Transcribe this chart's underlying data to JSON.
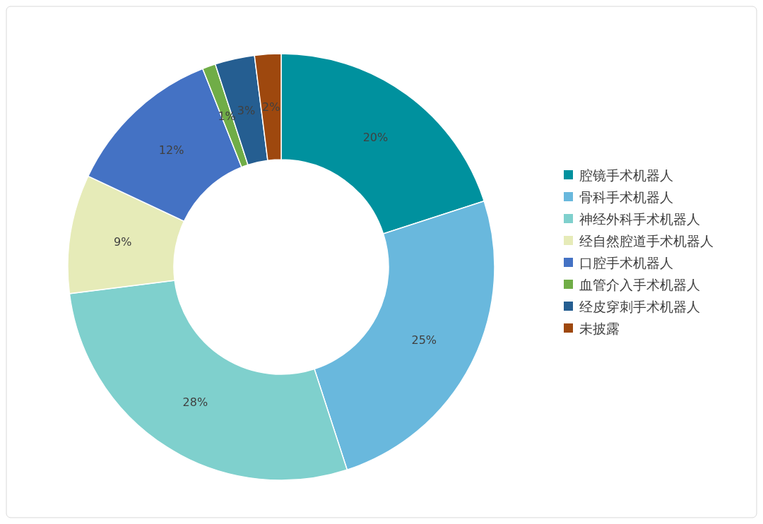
{
  "chart_data": {
    "type": "donut",
    "categories": [
      "腔镜手术机器人",
      "骨科手术机器人",
      "神经外科手术机器人",
      "经自然腔道手术机器人",
      "口腔手术机器人",
      "血管介入手术机器人",
      "经皮穿刺手术机器人",
      "未披露"
    ],
    "values": [
      20,
      25,
      28,
      9,
      12,
      1,
      3,
      2
    ],
    "colors": [
      "#00919e",
      "#69b8dd",
      "#7fd0cd",
      "#e6ebb8",
      "#4472c4",
      "#70ad47",
      "#255e91",
      "#9e480e"
    ],
    "value_labels": [
      "20%",
      "25%",
      "28%",
      "9%",
      "12%",
      "1%",
      "3%",
      "2%"
    ],
    "legend": "right"
  }
}
